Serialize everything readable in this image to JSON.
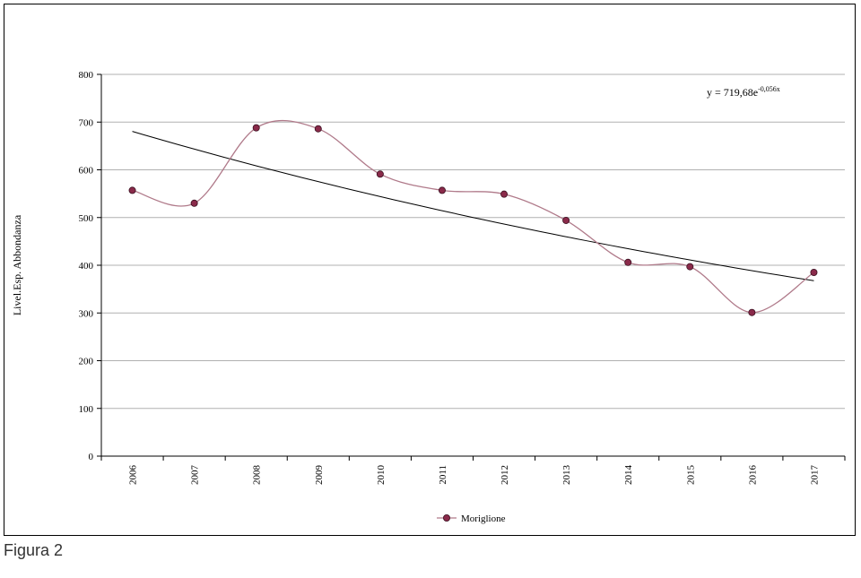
{
  "caption": "Figura 2",
  "colors": {
    "series": "#b07a8a",
    "marker_fill": "#8a2a4a",
    "marker_stroke": "#3a1020",
    "trendline": "#000000",
    "grid": "#b0b0b0"
  },
  "chart_data": {
    "type": "line",
    "title": "",
    "xlabel": "",
    "ylabel": "Livel.Esp. Abbondanza",
    "ylim": [
      0,
      800
    ],
    "yticks": [
      "0",
      "100",
      "200",
      "300",
      "400",
      "500",
      "600",
      "700",
      "800"
    ],
    "grid": true,
    "legend_position": "bottom-center",
    "categories": [
      "2006",
      "2007",
      "2008",
      "2009",
      "2010",
      "2011",
      "2012",
      "2013",
      "2014",
      "2015",
      "2016",
      "2017"
    ],
    "series": [
      {
        "name": "Moriglione",
        "smooth": true,
        "marker": "circle",
        "values": [
          557,
          530,
          688,
          686,
          591,
          557,
          549,
          494,
          406,
          397,
          301,
          385
        ]
      }
    ],
    "trendline": {
      "type": "exponential",
      "a": 719.68,
      "b": -0.056,
      "equation_base": "y = 719,68e",
      "equation_exponent": "-0,056x",
      "label_position": "top-right"
    }
  }
}
